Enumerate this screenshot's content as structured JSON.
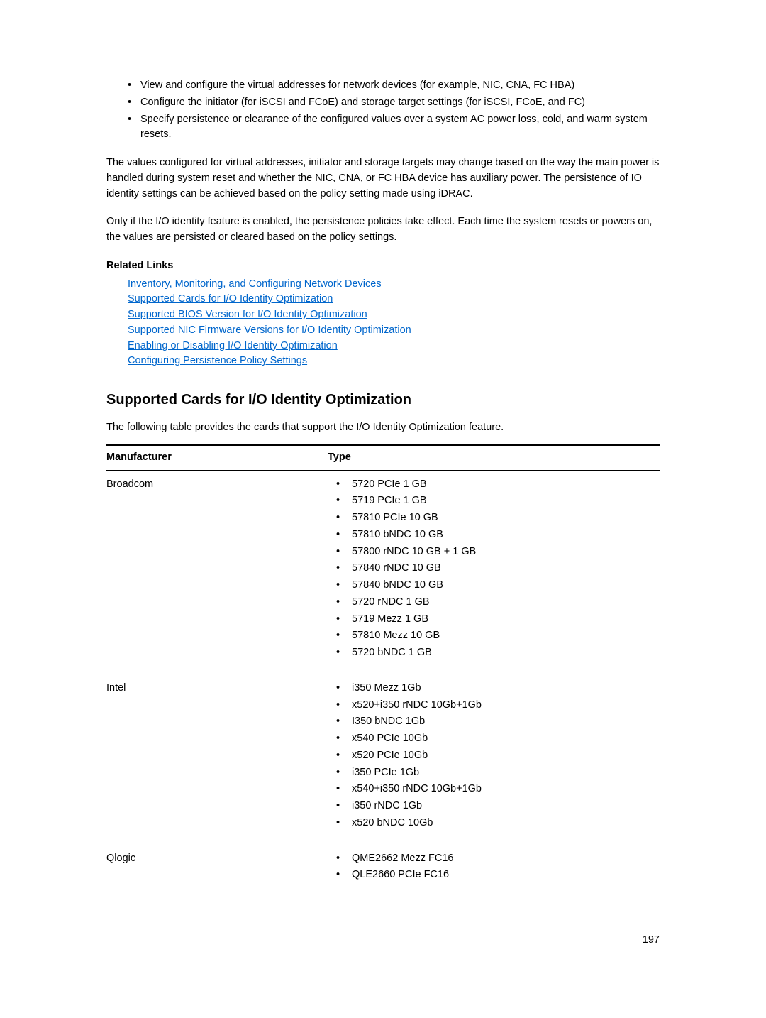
{
  "intro_bullets": [
    "View and configure the virtual addresses for network devices (for example, NIC, CNA, FC HBA)",
    "Configure the initiator (for iSCSI and FCoE) and storage target settings (for iSCSI, FCoE, and FC)",
    "Specify persistence or clearance of the configured values over a system AC power loss, cold, and warm system resets."
  ],
  "paragraph1": "The values configured for virtual addresses, initiator and storage targets may change based on the way the main power is handled during system reset and whether the NIC, CNA, or FC HBA device has auxiliary power. The persistence of IO identity settings can be achieved based on the policy setting made using iDRAC.",
  "paragraph2": "Only if the I/O identity feature is enabled, the persistence policies take effect. Each time the system resets or powers on, the values are persisted or cleared based on the policy settings.",
  "related_links_header": "Related Links",
  "related_links": [
    "Inventory, Monitoring, and Configuring Network Devices",
    "Supported Cards for I/O Identity Optimization",
    "Supported BIOS Version for I/O Identity Optimization",
    "Supported NIC Firmware Versions for I/O Identity Optimization",
    "Enabling or Disabling I/O Identity Optimization",
    "Configuring Persistence Policy Settings"
  ],
  "section_heading": "Supported Cards for I/O Identity Optimization",
  "table_intro": "The following table provides the cards that support the I/O Identity Optimization feature.",
  "table": {
    "columns": [
      "Manufacturer",
      "Type"
    ],
    "rows": [
      {
        "manufacturer": "Broadcom",
        "types": [
          "5720 PCIe 1 GB",
          "5719 PCIe 1 GB",
          "57810 PCIe 10 GB",
          "57810 bNDC 10 GB",
          "57800 rNDC 10 GB + 1 GB",
          "57840 rNDC 10 GB",
          "57840 bNDC 10 GB",
          "5720 rNDC 1 GB",
          "5719 Mezz 1 GB",
          "57810 Mezz 10 GB",
          "5720 bNDC 1 GB"
        ]
      },
      {
        "manufacturer": "Intel",
        "types": [
          "i350 Mezz 1Gb",
          "x520+i350 rNDC 10Gb+1Gb",
          "I350 bNDC 1Gb",
          "x540 PCIe 10Gb",
          "x520 PCIe 10Gb",
          "i350 PCIe 1Gb",
          "x540+i350 rNDC 10Gb+1Gb",
          "i350 rNDC 1Gb",
          "x520 bNDC 10Gb"
        ]
      },
      {
        "manufacturer": "Qlogic",
        "types": [
          "QME2662 Mezz FC16",
          "QLE2660 PCIe FC16"
        ]
      }
    ]
  },
  "page_number": "197"
}
